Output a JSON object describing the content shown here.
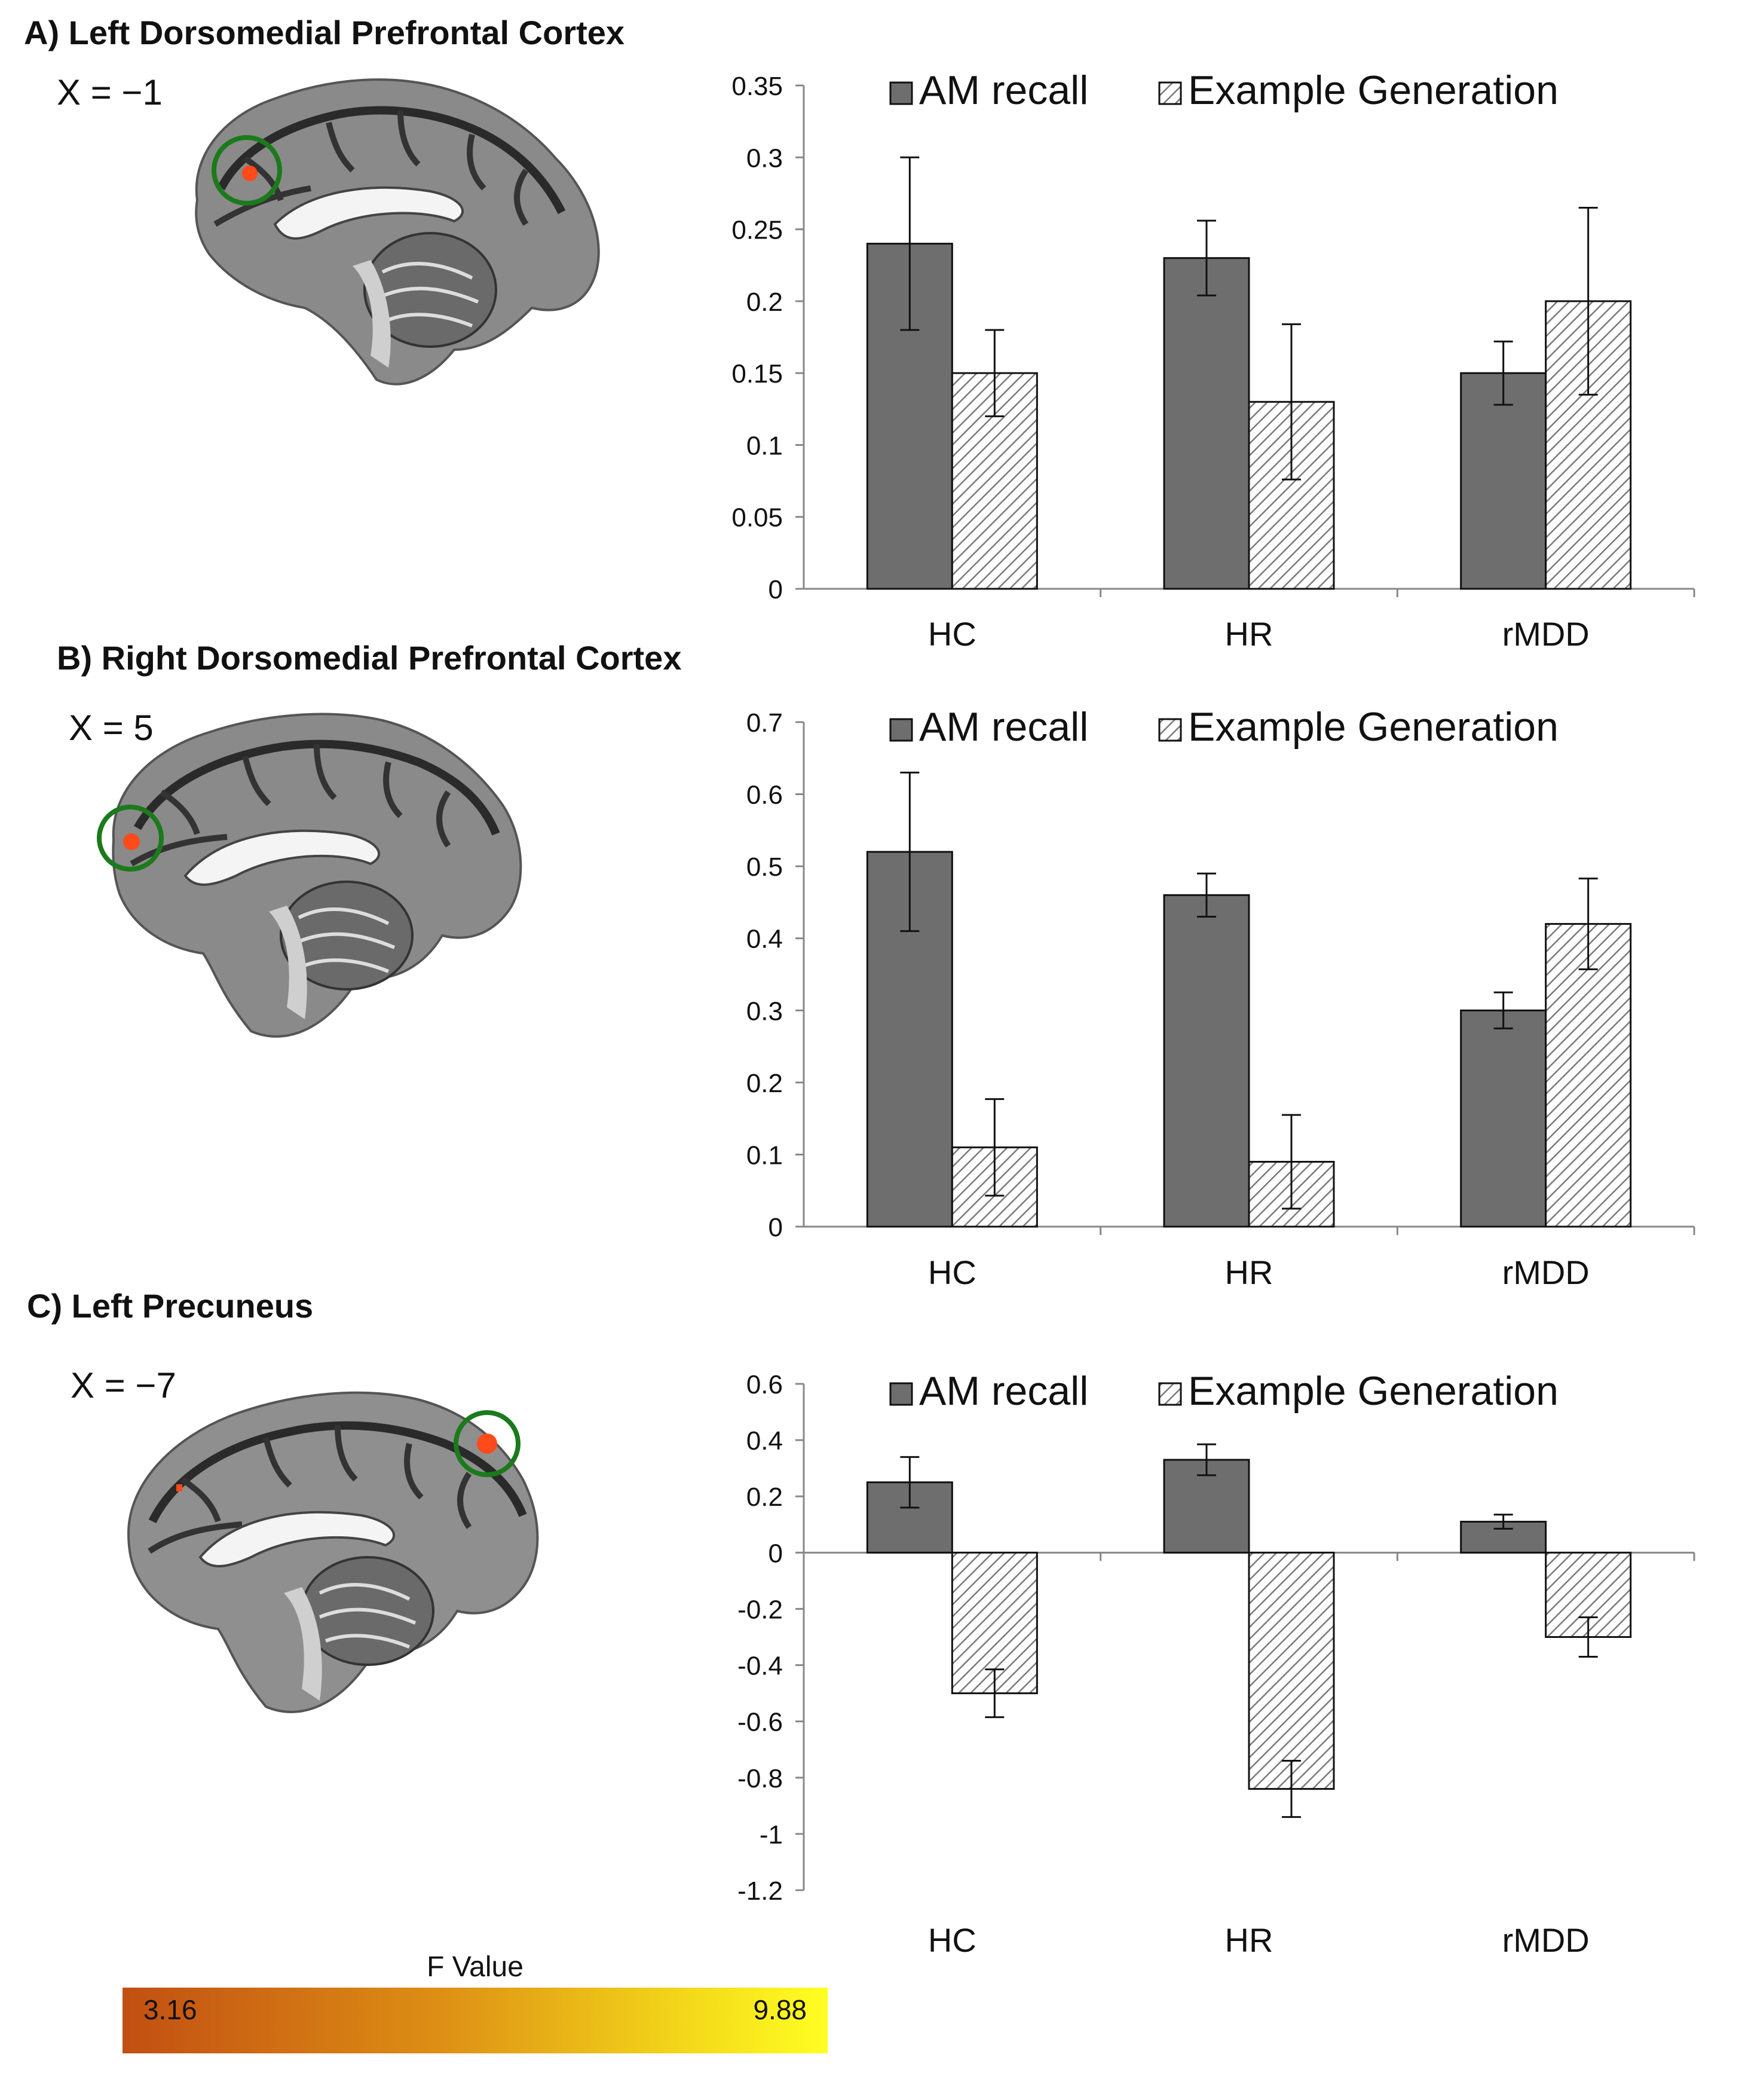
{
  "panels": [
    {
      "title": "A) Left Dorsomedial Prefrontal Cortex",
      "coord": "X = −1"
    },
    {
      "title": "B) Right Dorsomedial Prefrontal Cortex",
      "coord": "X = 5"
    },
    {
      "title": "C) Left Precuneus",
      "coord": "X = −7"
    }
  ],
  "colorbar": {
    "title": "F Value",
    "min_label": "3.16",
    "max_label": "9.88",
    "colors": [
      "#c24f12",
      "#dd8f15",
      "#f2d41a",
      "#ffff22"
    ]
  },
  "style": {
    "am_fill": "#6e6e6e",
    "eg_fill": "#ffffff",
    "hatch": "#7a7a7a",
    "roi_ring": "#1b7a1b",
    "activation": "#ff4a1c"
  },
  "chart_data": [
    {
      "type": "bar",
      "title": "A) Left Dorsomedial Prefrontal Cortex",
      "categories": [
        "HC",
        "HR",
        "rMDD"
      ],
      "legend": [
        "AM recall",
        "Example Generation"
      ],
      "ylim": [
        0,
        0.35
      ],
      "ytick_values": [
        0,
        0.05,
        0.1,
        0.15,
        0.2,
        0.25,
        0.3,
        0.35
      ],
      "ytick_labels": [
        "0",
        "0.05",
        "0.1",
        "0.15",
        "0.2",
        "0.25",
        "0.3",
        "0.35"
      ],
      "series": [
        {
          "name": "AM recall",
          "values": [
            0.24,
            0.23,
            0.15
          ],
          "err": [
            0.06,
            0.026,
            0.022
          ]
        },
        {
          "name": "Example Generation",
          "values": [
            0.15,
            0.13,
            0.2
          ],
          "err": [
            0.03,
            0.054,
            0.065
          ]
        }
      ]
    },
    {
      "type": "bar",
      "title": "B) Right Dorsomedial Prefrontal Cortex",
      "categories": [
        "HC",
        "HR",
        "rMDD"
      ],
      "legend": [
        "AM recall",
        "Example Generation"
      ],
      "ylim": [
        0,
        0.7
      ],
      "ytick_values": [
        0,
        0.1,
        0.2,
        0.3,
        0.4,
        0.5,
        0.6,
        0.7
      ],
      "ytick_labels": [
        "0",
        "0.1",
        "0.2",
        "0.3",
        "0.4",
        "0.5",
        "0.6",
        "0.7"
      ],
      "series": [
        {
          "name": "AM recall",
          "values": [
            0.52,
            0.46,
            0.3
          ],
          "err": [
            0.11,
            0.03,
            0.025
          ]
        },
        {
          "name": "Example Generation",
          "values": [
            0.11,
            0.09,
            0.42
          ],
          "err": [
            0.067,
            0.065,
            0.063
          ]
        }
      ]
    },
    {
      "type": "bar",
      "title": "C) Left Precuneus",
      "categories": [
        "HC",
        "HR",
        "rMDD"
      ],
      "legend": [
        "AM recall",
        "Example Generation"
      ],
      "ylim": [
        -1.2,
        0.6
      ],
      "ytick_values": [
        -1.2,
        -1,
        -0.8,
        -0.6,
        -0.4,
        -0.2,
        0,
        0.2,
        0.4,
        0.6
      ],
      "ytick_labels": [
        "-1.2",
        "-1",
        "-0.8",
        "-0.6",
        "-0.4",
        "-0.2",
        "0",
        "0.2",
        "0.4",
        "0.6"
      ],
      "series": [
        {
          "name": "AM recall",
          "values": [
            0.25,
            0.33,
            0.11
          ],
          "err": [
            0.09,
            0.055,
            0.025
          ]
        },
        {
          "name": "Example Generation",
          "values": [
            -0.5,
            -0.84,
            -0.3
          ],
          "err": [
            0.085,
            0.1,
            0.07
          ]
        }
      ]
    }
  ]
}
